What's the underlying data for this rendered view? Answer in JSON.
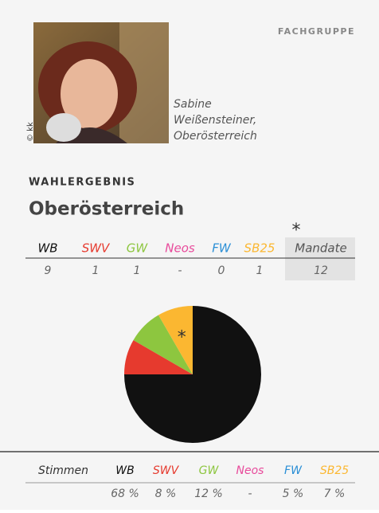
{
  "header": {
    "label": "FACHGRUPPE",
    "photo_credit": "© kk",
    "caption": [
      "Sabine",
      "Weißensteiner,",
      "Oberösterreich"
    ]
  },
  "section": {
    "label": "WAHLERGEBNIS",
    "title": "Oberösterreich",
    "note_mark": "*"
  },
  "mandate": {
    "columns": [
      "WB",
      "SWV",
      "GW",
      "Neos",
      "FW",
      "SB25",
      "Mandate"
    ],
    "colors": [
      "#111111",
      "#e63a2e",
      "#8dc63f",
      "#e84a9b",
      "#2b8fd6",
      "#fbb731",
      "#555555"
    ],
    "values": [
      9,
      1,
      1,
      "-",
      0,
      1,
      12
    ]
  },
  "stimmen": {
    "label": "Stimmen",
    "values": [
      "68 %",
      "8 %",
      "12 %",
      "-",
      "5 %",
      "7 %"
    ]
  }
}
